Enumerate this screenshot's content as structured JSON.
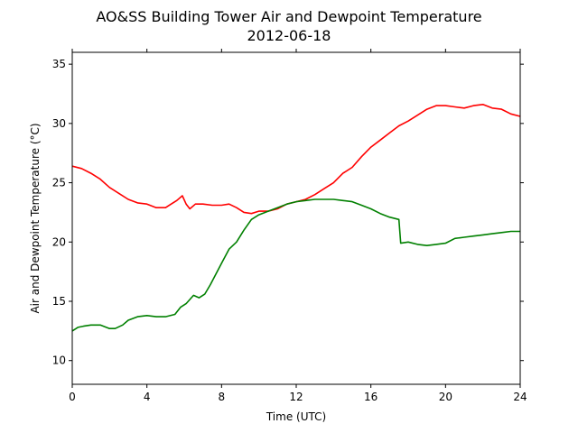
{
  "chart_data": {
    "type": "line",
    "title": "AO&SS Building Tower Air and Dewpoint Temperature",
    "subtitle": "2012-06-18",
    "xlabel": "Time (UTC)",
    "ylabel": "Air and Dewpoint Temperature (°C)",
    "xlim": [
      0,
      24
    ],
    "ylim": [
      8,
      36
    ],
    "xticks": [
      0,
      4,
      8,
      12,
      16,
      20,
      24
    ],
    "yticks": [
      10,
      15,
      20,
      25,
      30,
      35
    ],
    "grid": false,
    "legend": "none",
    "series": [
      {
        "color": "#ff0000",
        "x": [
          0,
          0.5,
          1,
          1.5,
          2,
          2.5,
          3,
          3.5,
          4,
          4.5,
          5,
          5.3,
          5.6,
          5.9,
          6.1,
          6.3,
          6.6,
          7,
          7.5,
          8,
          8.4,
          8.8,
          9.2,
          9.6,
          10,
          10.5,
          11,
          11.5,
          12,
          12.5,
          13,
          13.5,
          14,
          14.5,
          15,
          15.5,
          16,
          16.5,
          17,
          17.5,
          18,
          18.5,
          19,
          19.5,
          20,
          20.5,
          21,
          21.5,
          22,
          22.5,
          23,
          23.5,
          24
        ],
        "y": [
          26.4,
          26.2,
          25.8,
          25.3,
          24.6,
          24.1,
          23.6,
          23.3,
          23.2,
          22.9,
          22.9,
          23.2,
          23.5,
          23.9,
          23.2,
          22.8,
          23.2,
          23.2,
          23.1,
          23.1,
          23.2,
          22.9,
          22.5,
          22.4,
          22.6,
          22.6,
          22.8,
          23.2,
          23.4,
          23.6,
          24.0,
          24.5,
          25.0,
          25.8,
          26.3,
          27.2,
          28.0,
          28.6,
          29.2,
          29.8,
          30.2,
          30.7,
          31.2,
          31.5,
          31.5,
          31.4,
          31.3,
          31.5,
          31.6,
          31.3,
          31.2,
          30.8,
          30.6
        ]
      },
      {
        "color": "#008000",
        "x": [
          0,
          0.3,
          0.6,
          1,
          1.5,
          2,
          2.3,
          2.7,
          3,
          3.5,
          4,
          4.5,
          5,
          5.5,
          5.8,
          6.1,
          6.5,
          6.8,
          7.1,
          7.4,
          7.7,
          8,
          8.4,
          8.8,
          9.2,
          9.6,
          10,
          10.5,
          11,
          11.5,
          12,
          12.5,
          13,
          13.5,
          14,
          14.5,
          15,
          15.5,
          16,
          16.5,
          17,
          17.5,
          17.6,
          18,
          18.5,
          19,
          19.5,
          20,
          20.5,
          21,
          21.5,
          22,
          22.5,
          23,
          23.5,
          24
        ],
        "y": [
          12.5,
          12.8,
          12.9,
          13.0,
          13.0,
          12.7,
          12.7,
          13.0,
          13.4,
          13.7,
          13.8,
          13.7,
          13.7,
          13.9,
          14.5,
          14.8,
          15.5,
          15.3,
          15.6,
          16.4,
          17.3,
          18.2,
          19.4,
          20.0,
          21.0,
          21.9,
          22.3,
          22.6,
          22.9,
          23.2,
          23.4,
          23.5,
          23.6,
          23.6,
          23.6,
          23.5,
          23.4,
          23.1,
          22.8,
          22.4,
          22.1,
          21.9,
          19.9,
          20.0,
          19.8,
          19.7,
          19.8,
          19.9,
          20.3,
          20.4,
          20.5,
          20.6,
          20.7,
          20.8,
          20.9,
          20.9
        ]
      }
    ]
  }
}
